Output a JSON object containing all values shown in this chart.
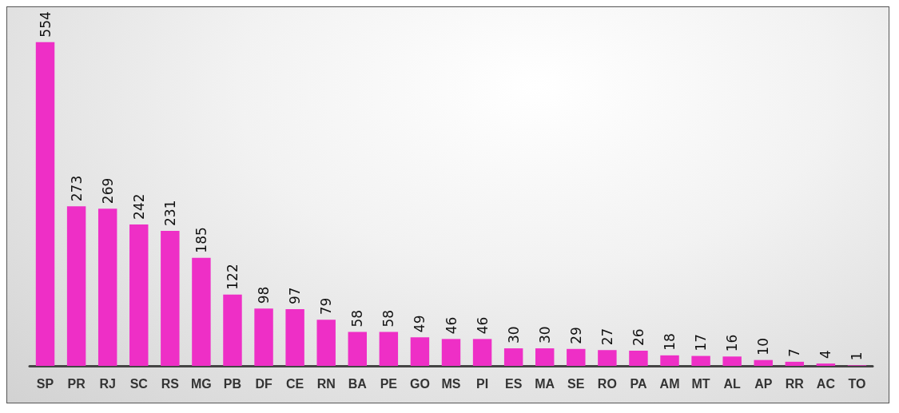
{
  "chart_data": {
    "type": "bar",
    "categories": [
      "SP",
      "PR",
      "RJ",
      "SC",
      "RS",
      "MG",
      "PB",
      "DF",
      "CE",
      "RN",
      "BA",
      "PE",
      "GO",
      "MS",
      "PI",
      "ES",
      "MA",
      "SE",
      "RO",
      "PA",
      "AM",
      "MT",
      "AL",
      "AP",
      "RR",
      "AC",
      "TO"
    ],
    "values": [
      554,
      273,
      269,
      242,
      231,
      185,
      122,
      98,
      97,
      79,
      58,
      58,
      49,
      46,
      46,
      30,
      30,
      29,
      27,
      26,
      18,
      17,
      16,
      10,
      7,
      4,
      1
    ],
    "color": "#ee2fc6",
    "data_labels": true
  }
}
